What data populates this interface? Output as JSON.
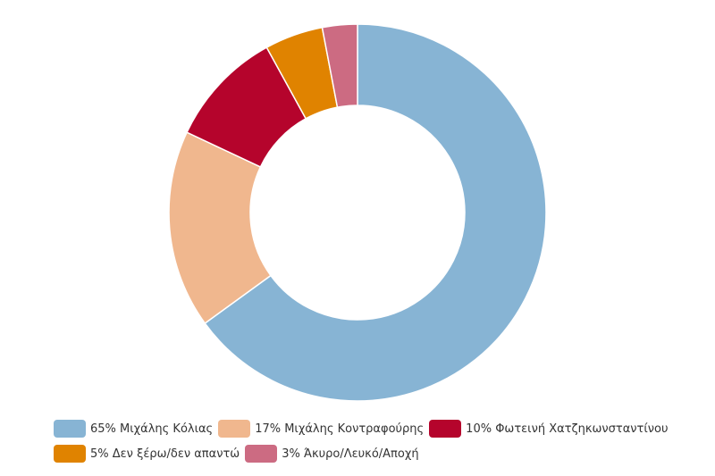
{
  "chart_data": {
    "type": "pie",
    "style": "donut",
    "categories": [
      "Μιχάλης Κόλιας",
      "Μιχάλης Κοντραφούρης",
      "Φωτεινή Χατζηκωνσταντίνου",
      "Δεν ξέρω/δεν απαντώ",
      "Άκυρο/Λευκό/Αποχή"
    ],
    "values": [
      65,
      17,
      10,
      5,
      3
    ],
    "labels": [
      "65% Μιχάλης Κόλιας",
      "17% Μιχάλης Κοντραφούρης",
      "10% Φωτεινή Χατζηκωνσταντίνου",
      "5% Δεν ξέρω/δεν απαντώ",
      "3% Άκυρο/Λευκό/Αποχή"
    ],
    "colors": [
      "#87b4d4",
      "#f0b78e",
      "#b5042c",
      "#e08300",
      "#cc6b82"
    ],
    "legend_position": "bottom",
    "title": ""
  }
}
